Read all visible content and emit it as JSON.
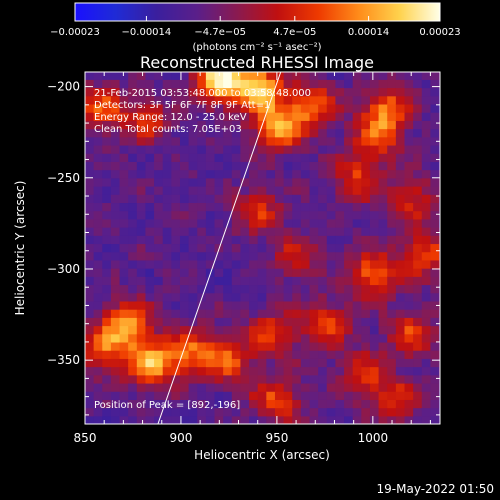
{
  "chart_data": {
    "type": "heatmap",
    "title": "Reconstructed RHESSI Image",
    "xlabel": "Heliocentric X (arcsec)",
    "ylabel": "Heliocentric Y (arcsec)",
    "xlim": [
      850,
      1035
    ],
    "ylim": [
      -385,
      -192
    ],
    "x_ticks": [
      850,
      900,
      950,
      1000
    ],
    "x_tick_labels": [
      "850",
      "900",
      "950",
      "1000"
    ],
    "y_ticks": [
      -200,
      -250,
      -300,
      -350
    ],
    "y_tick_labels": [
      "−200",
      "−250",
      "−300",
      "−350"
    ],
    "colorbar": {
      "range": [
        -0.00023,
        0.00023
      ],
      "ticks": [
        -0.00023,
        -0.00014,
        -4.7e-05,
        4.7e-05,
        0.00014,
        0.00023
      ],
      "tick_labels": [
        "−0.00023",
        "−0.00014",
        "−4.7e−05",
        "4.7e−05",
        "0.00014",
        "0.00023"
      ],
      "unit": "(photons cm⁻² s⁻¹ asec⁻²)",
      "colormap": "rainbow-to-hot",
      "colors": [
        "#1a10ff",
        "#1f2bd6",
        "#3a1f9e",
        "#5a1f8a",
        "#8a1a50",
        "#c01010",
        "#ee3a00",
        "#ff8c1a",
        "#ffd24d",
        "#ffffe8"
      ]
    },
    "annotations": [
      "21-Feb-2015 03:53:48.000 to 03:58:48.000",
      "Detectors: 3F 5F 6F 7F 8F 9F Att=1",
      "Energy Range: 12.0 - 25.0 keV",
      "Clean    Total counts: 7.05E+03",
      "Position of Peak = [892,-196]"
    ],
    "peak": [
      892,
      -196
    ],
    "limb_line": {
      "x": [
        888,
        952
      ],
      "y": [
        -385,
        -192
      ],
      "color": "#ffffff"
    },
    "bright_sources": [
      {
        "x": 920,
        "y": -196,
        "amp": 1.0
      },
      {
        "x": 940,
        "y": -200,
        "amp": 0.9
      },
      {
        "x": 950,
        "y": -222,
        "amp": 0.8
      },
      {
        "x": 968,
        "y": -210,
        "amp": 0.6
      },
      {
        "x": 1007,
        "y": -212,
        "amp": 0.6
      },
      {
        "x": 1002,
        "y": -228,
        "amp": 0.5
      },
      {
        "x": 858,
        "y": -212,
        "amp": 0.55
      },
      {
        "x": 882,
        "y": -218,
        "amp": 0.45
      },
      {
        "x": 992,
        "y": -250,
        "amp": 0.5
      },
      {
        "x": 1020,
        "y": -262,
        "amp": 0.45
      },
      {
        "x": 940,
        "y": -268,
        "amp": 0.45
      },
      {
        "x": 1000,
        "y": -303,
        "amp": 0.65
      },
      {
        "x": 1027,
        "y": -292,
        "amp": 0.55
      },
      {
        "x": 960,
        "y": -293,
        "amp": 0.4
      },
      {
        "x": 872,
        "y": -330,
        "amp": 0.75
      },
      {
        "x": 885,
        "y": -352,
        "amp": 0.8
      },
      {
        "x": 860,
        "y": -345,
        "amp": 0.55
      },
      {
        "x": 905,
        "y": -345,
        "amp": 0.6
      },
      {
        "x": 925,
        "y": -350,
        "amp": 0.55
      },
      {
        "x": 948,
        "y": -335,
        "amp": 0.5
      },
      {
        "x": 975,
        "y": -330,
        "amp": 0.55
      },
      {
        "x": 995,
        "y": -358,
        "amp": 0.5
      },
      {
        "x": 1020,
        "y": -335,
        "amp": 0.5
      },
      {
        "x": 950,
        "y": -372,
        "amp": 0.55
      },
      {
        "x": 1012,
        "y": -372,
        "amp": 0.45
      }
    ]
  },
  "footer": {
    "date": "19-May-2022 01:50"
  }
}
